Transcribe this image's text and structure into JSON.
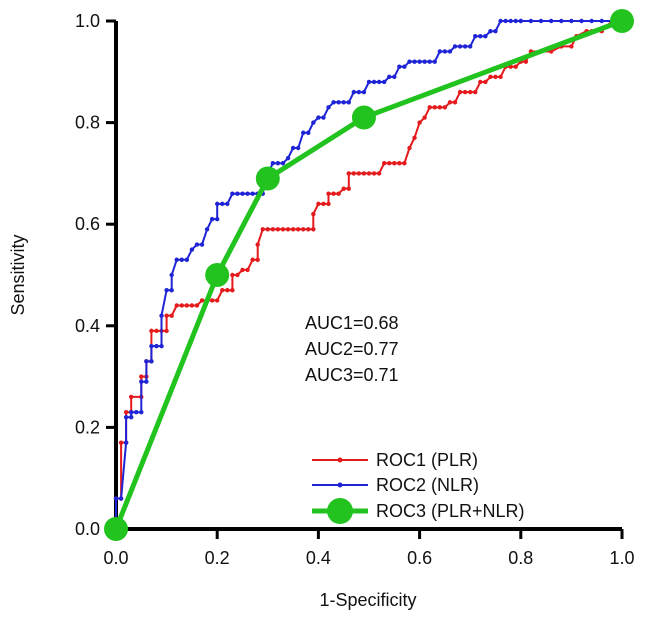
{
  "chart_data": {
    "type": "line",
    "title": "",
    "xlabel": "1-Specificity",
    "ylabel": "Sensitivity",
    "xlim": [
      0,
      1
    ],
    "ylim": [
      0,
      1
    ],
    "xticks": [
      0.0,
      0.2,
      0.4,
      0.6,
      0.8,
      1.0
    ],
    "yticks": [
      0.0,
      0.2,
      0.4,
      0.6,
      0.8,
      1.0
    ],
    "xtick_labels": [
      "0.0",
      "0.2",
      "0.4",
      "0.6",
      "0.8",
      "1.0"
    ],
    "ytick_labels": [
      "0.0",
      "0.2",
      "0.4",
      "0.6",
      "0.8",
      "1.0"
    ],
    "grid": false,
    "legend_position": "bottom-right",
    "annotations": [
      "AUC1=0.68",
      "AUC2=0.77",
      "AUC3=0.71"
    ],
    "series": [
      {
        "name": "ROC1 (PLR)",
        "color": "#e41a1c",
        "marker": "small-dot",
        "x": [
          0.0,
          0.0,
          0.01,
          0.01,
          0.02,
          0.02,
          0.03,
          0.03,
          0.05,
          0.05,
          0.06,
          0.06,
          0.07,
          0.07,
          0.08,
          0.09,
          0.1,
          0.1,
          0.11,
          0.12,
          0.13,
          0.14,
          0.15,
          0.16,
          0.17,
          0.18,
          0.19,
          0.2,
          0.21,
          0.22,
          0.23,
          0.23,
          0.24,
          0.25,
          0.26,
          0.27,
          0.28,
          0.28,
          0.29,
          0.3,
          0.31,
          0.32,
          0.33,
          0.34,
          0.35,
          0.36,
          0.37,
          0.38,
          0.39,
          0.39,
          0.4,
          0.41,
          0.42,
          0.42,
          0.43,
          0.44,
          0.45,
          0.46,
          0.46,
          0.47,
          0.48,
          0.49,
          0.5,
          0.51,
          0.52,
          0.53,
          0.54,
          0.55,
          0.56,
          0.57,
          0.58,
          0.59,
          0.6,
          0.61,
          0.62,
          0.63,
          0.64,
          0.65,
          0.66,
          0.67,
          0.68,
          0.69,
          0.7,
          0.71,
          0.72,
          0.73,
          0.74,
          0.75,
          0.76,
          0.77,
          0.78,
          0.79,
          0.8,
          0.81,
          0.82,
          0.84,
          0.86,
          0.88,
          0.9,
          0.91,
          0.93,
          0.94,
          0.96,
          0.98,
          1.0
        ],
        "y": [
          0.0,
          0.06,
          0.06,
          0.17,
          0.17,
          0.23,
          0.23,
          0.26,
          0.26,
          0.3,
          0.3,
          0.33,
          0.33,
          0.39,
          0.39,
          0.39,
          0.39,
          0.42,
          0.42,
          0.44,
          0.44,
          0.44,
          0.44,
          0.44,
          0.45,
          0.45,
          0.45,
          0.45,
          0.47,
          0.47,
          0.47,
          0.5,
          0.5,
          0.51,
          0.51,
          0.53,
          0.53,
          0.56,
          0.59,
          0.59,
          0.59,
          0.59,
          0.59,
          0.59,
          0.59,
          0.59,
          0.59,
          0.59,
          0.59,
          0.62,
          0.64,
          0.64,
          0.64,
          0.66,
          0.66,
          0.66,
          0.67,
          0.67,
          0.7,
          0.7,
          0.7,
          0.7,
          0.7,
          0.7,
          0.7,
          0.72,
          0.72,
          0.72,
          0.72,
          0.72,
          0.75,
          0.77,
          0.8,
          0.81,
          0.83,
          0.83,
          0.83,
          0.83,
          0.84,
          0.84,
          0.86,
          0.86,
          0.86,
          0.86,
          0.88,
          0.88,
          0.89,
          0.89,
          0.89,
          0.91,
          0.91,
          0.91,
          0.92,
          0.92,
          0.94,
          0.94,
          0.94,
          0.95,
          0.95,
          0.97,
          0.98,
          0.98,
          0.98,
          1.0,
          1.0
        ]
      },
      {
        "name": "ROC2 (NLR)",
        "color": "#1f24d6",
        "marker": "small-dot",
        "x": [
          0.0,
          0.0,
          0.01,
          0.02,
          0.02,
          0.03,
          0.03,
          0.04,
          0.05,
          0.05,
          0.06,
          0.06,
          0.07,
          0.07,
          0.08,
          0.09,
          0.09,
          0.1,
          0.11,
          0.11,
          0.12,
          0.13,
          0.14,
          0.15,
          0.16,
          0.17,
          0.18,
          0.19,
          0.2,
          0.2,
          0.21,
          0.22,
          0.23,
          0.24,
          0.25,
          0.26,
          0.27,
          0.28,
          0.29,
          0.3,
          0.31,
          0.32,
          0.33,
          0.34,
          0.35,
          0.36,
          0.37,
          0.38,
          0.39,
          0.4,
          0.41,
          0.42,
          0.43,
          0.44,
          0.45,
          0.46,
          0.47,
          0.48,
          0.49,
          0.5,
          0.51,
          0.52,
          0.53,
          0.54,
          0.55,
          0.56,
          0.57,
          0.58,
          0.59,
          0.6,
          0.61,
          0.62,
          0.63,
          0.64,
          0.65,
          0.66,
          0.67,
          0.68,
          0.69,
          0.7,
          0.71,
          0.72,
          0.73,
          0.74,
          0.75,
          0.76,
          0.77,
          0.78,
          0.79,
          0.8,
          0.8,
          0.82,
          0.84,
          0.86,
          0.88,
          0.9,
          0.92,
          0.94,
          0.96,
          0.98,
          1.0
        ],
        "y": [
          0.0,
          0.06,
          0.06,
          0.17,
          0.22,
          0.22,
          0.23,
          0.23,
          0.23,
          0.29,
          0.29,
          0.33,
          0.33,
          0.36,
          0.36,
          0.36,
          0.42,
          0.47,
          0.47,
          0.5,
          0.53,
          0.53,
          0.53,
          0.55,
          0.56,
          0.56,
          0.59,
          0.61,
          0.61,
          0.64,
          0.64,
          0.64,
          0.66,
          0.66,
          0.66,
          0.66,
          0.66,
          0.66,
          0.66,
          0.7,
          0.72,
          0.72,
          0.72,
          0.73,
          0.75,
          0.75,
          0.78,
          0.78,
          0.8,
          0.81,
          0.81,
          0.83,
          0.84,
          0.84,
          0.84,
          0.84,
          0.86,
          0.86,
          0.86,
          0.88,
          0.88,
          0.88,
          0.88,
          0.89,
          0.89,
          0.91,
          0.91,
          0.92,
          0.92,
          0.92,
          0.92,
          0.92,
          0.92,
          0.94,
          0.94,
          0.94,
          0.95,
          0.95,
          0.95,
          0.95,
          0.97,
          0.97,
          0.97,
          0.98,
          0.98,
          1.0,
          1.0,
          1.0,
          1.0,
          1.0,
          1.0,
          1.0,
          1.0,
          1.0,
          1.0,
          1.0,
          1.0,
          1.0,
          1.0,
          1.0,
          1.0
        ]
      },
      {
        "name": "ROC3 (PLR+NLR)",
        "color": "#22c31f",
        "marker": "large-dot",
        "x": [
          0.0,
          0.2,
          0.3,
          0.49,
          1.0
        ],
        "y": [
          0.0,
          0.5,
          0.69,
          0.81,
          1.0
        ]
      }
    ]
  }
}
